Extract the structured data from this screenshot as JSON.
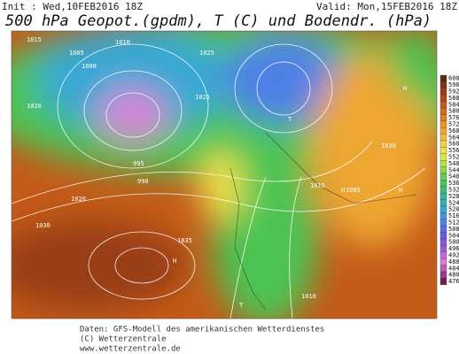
{
  "header": {
    "init": "Init : Wed,10FEB2016 18Z",
    "valid": "Valid: Mon,15FEB2016 18Z",
    "title": "500 hPa Geopot.(gpdm), T (C) und Bodendr. (hPa)"
  },
  "colorbar": {
    "labels": [
      600,
      596,
      592,
      588,
      584,
      580,
      576,
      572,
      568,
      564,
      560,
      556,
      552,
      548,
      544,
      540,
      536,
      532,
      528,
      524,
      520,
      516,
      512,
      508,
      504,
      500,
      496,
      492,
      488,
      484,
      480,
      476
    ],
    "colors": [
      "#5a2a10",
      "#7a3410",
      "#983e12",
      "#b04a14",
      "#c45a18",
      "#d46a1c",
      "#e07e22",
      "#e8922a",
      "#eea632",
      "#f2bc3c",
      "#f4d044",
      "#f0e24c",
      "#d8ea4c",
      "#b4e24a",
      "#8ed84a",
      "#6ace4c",
      "#4cc452",
      "#3cbc72",
      "#36b496",
      "#34b0b8",
      "#38a8d4",
      "#4494e0",
      "#5080e6",
      "#5c6ce6",
      "#6a5ce0",
      "#8458dc",
      "#a05ad8",
      "#c068d8",
      "#d880d8",
      "#c05cb8",
      "#9a3c8c",
      "#6a2050"
    ]
  },
  "map_labels": [
    "1015",
    "1010",
    "1005",
    "1000",
    "995",
    "990",
    "1025",
    "1030",
    "1035",
    "1020",
    "H",
    "T",
    "1010",
    "1015",
    "1005",
    "1020",
    "1030",
    "1025",
    "H",
    "H",
    "T",
    "H"
  ],
  "footer": [
    "Daten: GFS-Modell des amerikanischen Wetterdienstes",
    "(C) Wetterzentrale",
    "www.wetterzentrale.de"
  ]
}
